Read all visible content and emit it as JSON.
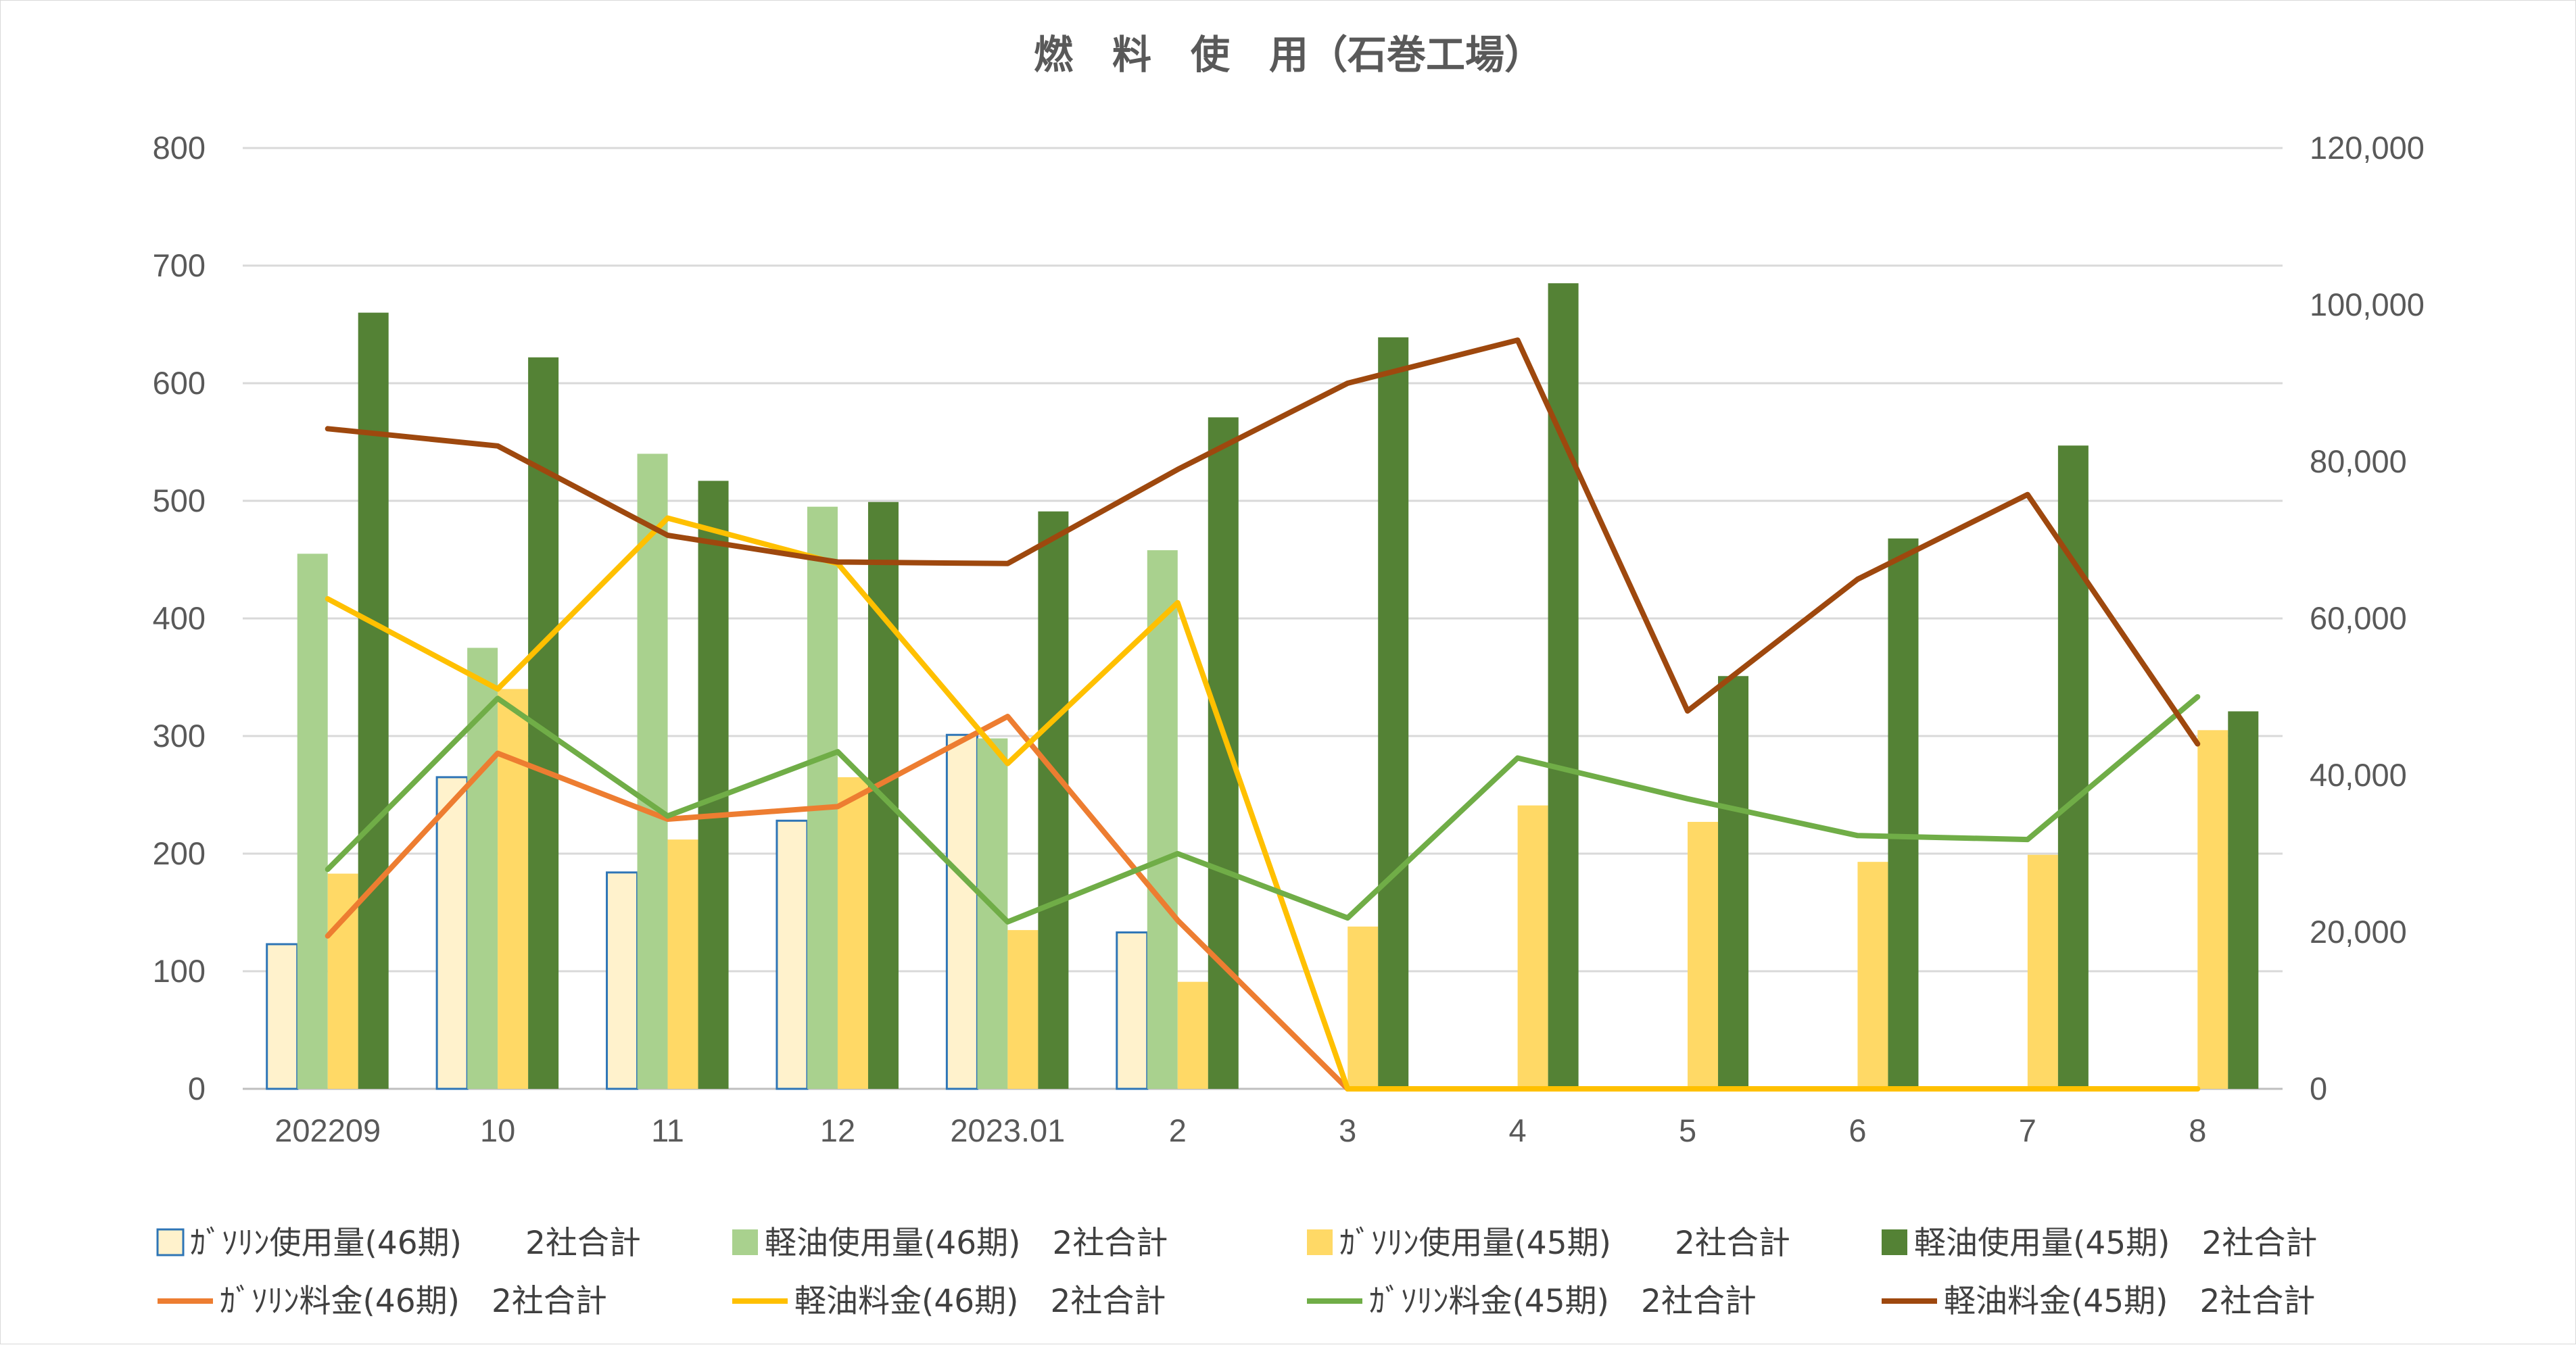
{
  "chart_data": {
    "type": "bar",
    "title": "燃　料　使　用（石巻工場）",
    "categories": [
      "202209",
      "10",
      "11",
      "12",
      "2023.01",
      "2",
      "3",
      "4",
      "5",
      "6",
      "7",
      "8"
    ],
    "y_left": {
      "min": 0,
      "max": 800,
      "ticks": [
        "0",
        "100",
        "200",
        "300",
        "400",
        "500",
        "600",
        "700",
        "800"
      ]
    },
    "y_right": {
      "min": 0,
      "max": 120000,
      "ticks": [
        "0",
        "20,000",
        "40,000",
        "60,000",
        "80,000",
        "100,000",
        "120,000"
      ]
    },
    "grid": true,
    "legend_position": "bottom",
    "bar_series": [
      {
        "name": "ｶﾞｿﾘﾝ使用量(46期)　　2社合計",
        "color": "#fff2cc",
        "stroke": "#2e75b6",
        "values": [
          123,
          265,
          184,
          228,
          301,
          133,
          null,
          null,
          null,
          null,
          null,
          null
        ]
      },
      {
        "name": "軽油使用量(46期)　2社合計",
        "color": "#a9d18e",
        "values": [
          455,
          375,
          540,
          495,
          298,
          458,
          null,
          null,
          null,
          null,
          null,
          null
        ]
      },
      {
        "name": "ｶﾞｿﾘﾝ使用量(45期)　　2社合計",
        "color": "#ffd966",
        "values": [
          183,
          340,
          212,
          265,
          135,
          91,
          138,
          241,
          227,
          193,
          199,
          305
        ]
      },
      {
        "name": "軽油使用量(45期)　2社合計",
        "color": "#548235",
        "values": [
          660,
          622,
          517,
          499,
          491,
          571,
          639,
          685,
          351,
          468,
          547,
          321
        ]
      }
    ],
    "line_series": [
      {
        "name": "ｶﾞｿﾘﾝ料金(46期)　2社合計",
        "color": "#ed7d31",
        "values": [
          19500,
          42800,
          34400,
          36000,
          47500,
          21500,
          0,
          null,
          null,
          null,
          null,
          null
        ]
      },
      {
        "name": "軽油料金(46期)　2社合計",
        "color": "#ffc000",
        "values": [
          62500,
          51000,
          72800,
          67000,
          41500,
          62000,
          0,
          0,
          0,
          0,
          0,
          0
        ]
      },
      {
        "name": "ｶﾞｿﾘﾝ料金(45期)　2社合計",
        "color": "#70ad47",
        "values": [
          28000,
          49800,
          34800,
          43000,
          21300,
          30000,
          21800,
          42200,
          37000,
          32300,
          31800,
          50000
        ]
      },
      {
        "name": "軽油料金(45期)　2社合計",
        "color": "#9e480e",
        "values": [
          84200,
          82000,
          70600,
          67200,
          67000,
          79000,
          90000,
          95500,
          48200,
          65000,
          75800,
          44000
        ]
      }
    ]
  }
}
